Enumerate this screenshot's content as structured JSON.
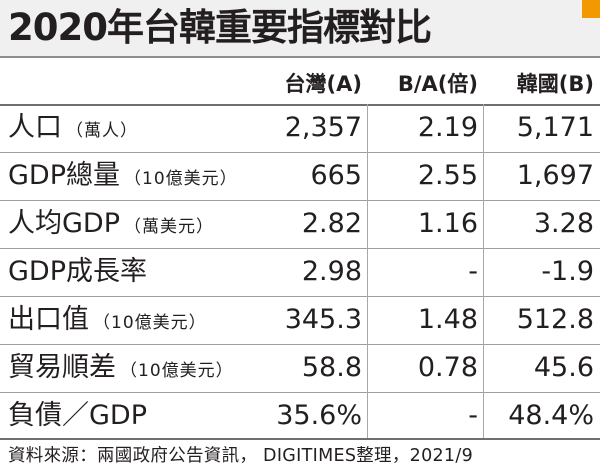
{
  "title": "2020年台韓重要指標對比",
  "columns": {
    "taiwan": "台灣(A)",
    "ratio": "B/A(倍)",
    "korea": "韓國(B)"
  },
  "rows": [
    {
      "label": "人口",
      "unit": "（萬人）",
      "taiwan": "2,357",
      "ratio": "2.19",
      "korea": "5,171"
    },
    {
      "label": "GDP總量",
      "unit": "（10億美元）",
      "taiwan": "665",
      "ratio": "2.55",
      "korea": "1,697"
    },
    {
      "label": "人均GDP",
      "unit": "（萬美元）",
      "taiwan": "2.82",
      "ratio": "1.16",
      "korea": "3.28"
    },
    {
      "label": "GDP成長率",
      "unit": "",
      "taiwan": "2.98",
      "ratio": "-",
      "korea": "-1.9"
    },
    {
      "label": "出口值",
      "unit": "（10億美元）",
      "taiwan": "345.3",
      "ratio": "1.48",
      "korea": "512.8"
    },
    {
      "label": "貿易順差",
      "unit": "（10億美元）",
      "taiwan": "58.8",
      "ratio": "0.78",
      "korea": "45.6"
    },
    {
      "label": "負債／GDP",
      "unit": "",
      "taiwan": "35.6%",
      "ratio": "-",
      "korea": "48.4%"
    }
  ],
  "source": "資料來源：兩國政府公告資訊， DIGITIMES整理，2021/9",
  "colors": {
    "accent": "#f39800",
    "title_bg": "#f0f0f0"
  }
}
